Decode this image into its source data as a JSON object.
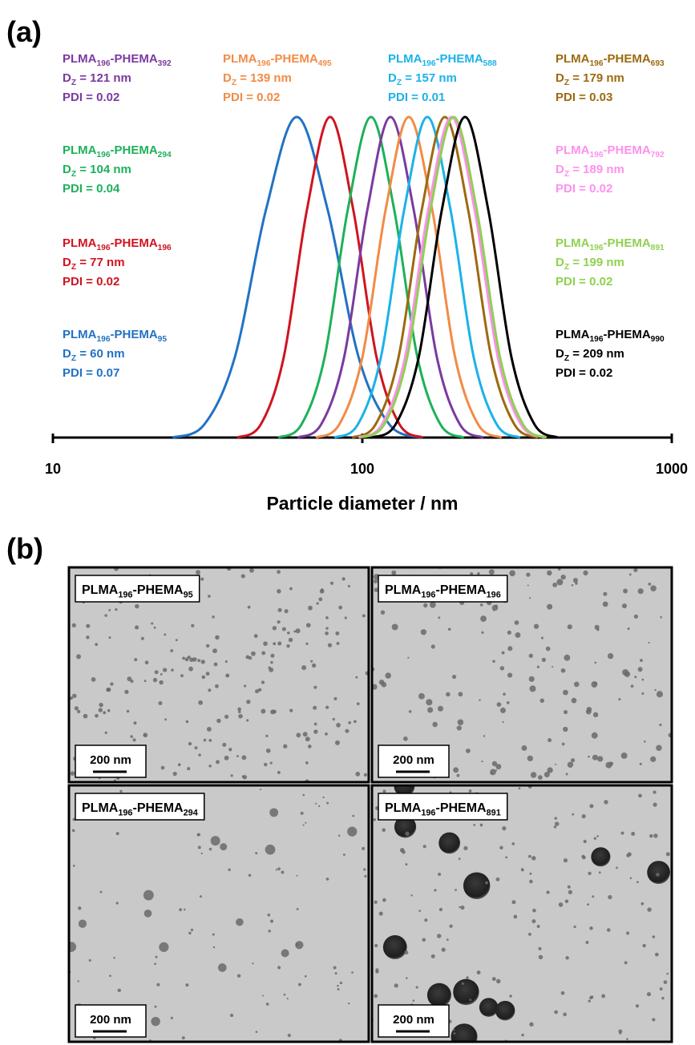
{
  "figure_labels": {
    "a": "(a)",
    "b": "(b)"
  },
  "chart_data": {
    "type": "line",
    "x_label": "Particle diameter / nm",
    "xscale": "log",
    "xlim": [
      10,
      1000
    ],
    "xticks": [
      10,
      100,
      1000
    ],
    "ylim": [
      0,
      100
    ],
    "series": [
      {
        "name": [
          "PLMA",
          "196",
          "-PHEMA",
          "95"
        ],
        "dz": [
          "D",
          "Z",
          " = 60 nm"
        ],
        "pdi": "PDI = 0.07",
        "color": "#2272c3",
        "x": [
          24.4,
          30.8,
          38.7,
          48.8,
          61.4,
          77.3,
          97.3,
          122.5,
          154.2
        ],
        "values": [
          0,
          4,
          25,
          71,
          100,
          71,
          25,
          4,
          0
        ]
      },
      {
        "name": [
          "PLMA",
          "196",
          "-PHEMA",
          "196"
        ],
        "dz": [
          "D",
          "Z",
          " = 77 nm"
        ],
        "pdi": "PDI = 0.02",
        "color": "#cf1420",
        "x": [
          39.4,
          46.9,
          55.7,
          66.2,
          78.7,
          93.5,
          111.2,
          132.1,
          157.0
        ],
        "values": [
          0,
          4,
          25,
          71,
          100,
          71,
          25,
          4,
          0
        ]
      },
      {
        "name": [
          "PLMA",
          "196",
          "-PHEMA",
          "294"
        ],
        "dz": [
          "D",
          "Z",
          " = 104 nm"
        ],
        "pdi": "PDI = 0.04",
        "color": "#1db15a",
        "x": [
          53.5,
          63.5,
          75.5,
          89.7,
          106.7,
          126.8,
          150.7,
          179.1,
          212.8
        ],
        "values": [
          0,
          4,
          25,
          71,
          100,
          71,
          25,
          4,
          0
        ]
      },
      {
        "name": [
          "PLMA",
          "196",
          "-PHEMA",
          "392"
        ],
        "dz": [
          "D",
          "Z",
          " = 121 nm"
        ],
        "pdi": "PDI = 0.02",
        "color": "#7b3aa0",
        "x": [
          61.8,
          73.5,
          87.3,
          103.8,
          123.3,
          146.6,
          174.2,
          207.0,
          246.0
        ],
        "values": [
          0,
          4,
          25,
          71,
          100,
          71,
          25,
          4,
          0
        ]
      },
      {
        "name": [
          "PLMA",
          "196",
          "-PHEMA",
          "495"
        ],
        "dz": [
          "D",
          "Z",
          " = 139 nm"
        ],
        "pdi": "PDI = 0.02",
        "color": "#f28b46",
        "x": [
          70.8,
          84.1,
          100,
          118.9,
          141.3,
          168.3,
          199.5,
          237.1,
          281.8
        ],
        "values": [
          0,
          4,
          25,
          71,
          100,
          71,
          25,
          4,
          0
        ]
      },
      {
        "name": [
          "PLMA",
          "196",
          "-PHEMA",
          "588"
        ],
        "dz": [
          "D",
          "Z",
          " = 157 nm"
        ],
        "pdi": "PDI = 0.01",
        "color": "#1cb2e8",
        "x": [
          81.3,
          96.6,
          114.8,
          136.5,
          162.2,
          192.8,
          229.1,
          272.3,
          323.6
        ],
        "values": [
          0,
          4,
          25,
          71,
          100,
          71,
          25,
          4,
          0
        ]
      },
      {
        "name": [
          "PLMA",
          "196",
          "-PHEMA",
          "693"
        ],
        "dz": [
          "D",
          "Z",
          " = 179 nm"
        ],
        "pdi": "PDI = 0.03",
        "color": "#9c6a10",
        "x": [
          92.7,
          110.2,
          130.9,
          155.6,
          184.9,
          219.8,
          261.2,
          310.5,
          369.0
        ],
        "values": [
          0,
          4,
          25,
          71,
          100,
          71,
          25,
          4,
          0
        ]
      },
      {
        "name": [
          "PLMA",
          "196",
          "-PHEMA",
          "792"
        ],
        "dz": [
          "D",
          "Z",
          " = 189 nm"
        ],
        "pdi": "PDI = 0.02",
        "color": "#ff90ee",
        "x": [
          97.3,
          115.6,
          137.4,
          163.3,
          194.1,
          230.7,
          274.2,
          325.8,
          387.3
        ],
        "values": [
          0,
          4,
          25,
          71,
          100,
          71,
          25,
          4,
          0
        ]
      },
      {
        "name": [
          "PLMA",
          "196",
          "-PHEMA",
          "891"
        ],
        "dz": [
          "D",
          "Z",
          " = 199 nm"
        ],
        "pdi": "PDI = 0.02",
        "color": "#8fd150",
        "x": [
          98.9,
          117.5,
          139.6,
          166.0,
          197.2,
          234.4,
          278.6,
          331.1,
          393.6
        ],
        "values": [
          0,
          4,
          25,
          71,
          100,
          71,
          25,
          4,
          0
        ]
      },
      {
        "name": [
          "PLMA",
          "196",
          "-PHEMA",
          "990"
        ],
        "dz": [
          "D",
          "Z",
          " = 209 nm"
        ],
        "pdi": "PDI = 0.02",
        "color": "#000000",
        "x": [
          107.7,
          127.9,
          152.1,
          180.7,
          214.8,
          255.3,
          303.4,
          360.6,
          428.5
        ],
        "values": [
          0,
          4,
          25,
          71,
          100,
          71,
          25,
          4,
          0
        ]
      }
    ]
  },
  "tem": {
    "panels": [
      {
        "label": [
          "PLMA",
          "196",
          "-PHEMA",
          "95"
        ],
        "scale_bar": "200 nm"
      },
      {
        "label": [
          "PLMA",
          "196",
          "-PHEMA",
          "196"
        ],
        "scale_bar": "200 nm"
      },
      {
        "label": [
          "PLMA",
          "196",
          "-PHEMA",
          "294"
        ],
        "scale_bar": "200 nm"
      },
      {
        "label": [
          "PLMA",
          "196",
          "-PHEMA",
          "891"
        ],
        "scale_bar": "200 nm"
      }
    ]
  }
}
